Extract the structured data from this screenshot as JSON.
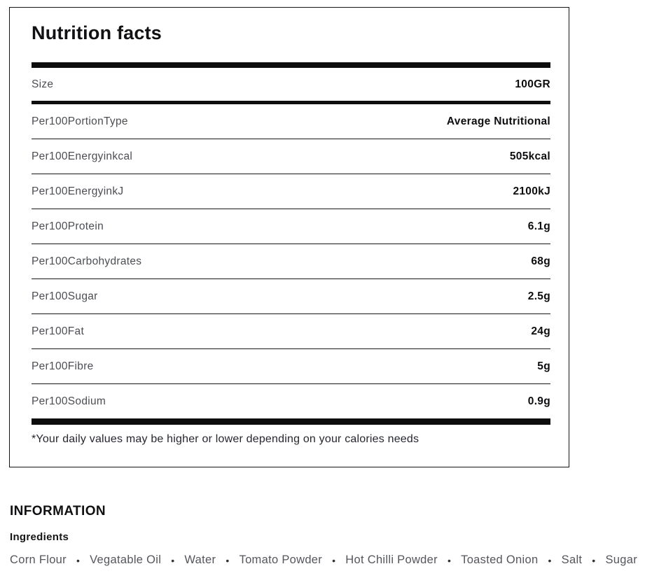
{
  "nutrition": {
    "title": "Nutrition facts",
    "rows": [
      {
        "label": "Size",
        "value": "100GR"
      },
      {
        "label": "Per100PortionType",
        "value": "Average Nutritional"
      },
      {
        "label": "Per100Energyinkcal",
        "value": "505kcal"
      },
      {
        "label": "Per100EnergyinkJ",
        "value": "2100kJ"
      },
      {
        "label": "Per100Protein",
        "value": "6.1g"
      },
      {
        "label": "Per100Carbohydrates",
        "value": "68g"
      },
      {
        "label": "Per100Sugar",
        "value": "2.5g"
      },
      {
        "label": "Per100Fat",
        "value": "24g"
      },
      {
        "label": "Per100Fibre",
        "value": "5g"
      },
      {
        "label": "Per100Sodium",
        "value": "0.9g"
      }
    ],
    "footnote": "*Your daily values may be higher or lower depending on your calories needs"
  },
  "information": {
    "heading": "INFORMATION",
    "subheading": "Ingredients",
    "ingredients": [
      "Corn Flour",
      "Vegatable Oil",
      "Water",
      "Tomato Powder",
      "Hot Chilli Powder",
      "Toasted Onion",
      "Salt",
      "Sugar"
    ],
    "bullet": "•"
  },
  "colors": {
    "background": "#ffffff",
    "panel_border": "#151515",
    "divider_bar": "#0d0d0d",
    "label_gray": "#4c4e54",
    "value_black": "#0e0e10",
    "ingredient_gray": "#54565c"
  }
}
